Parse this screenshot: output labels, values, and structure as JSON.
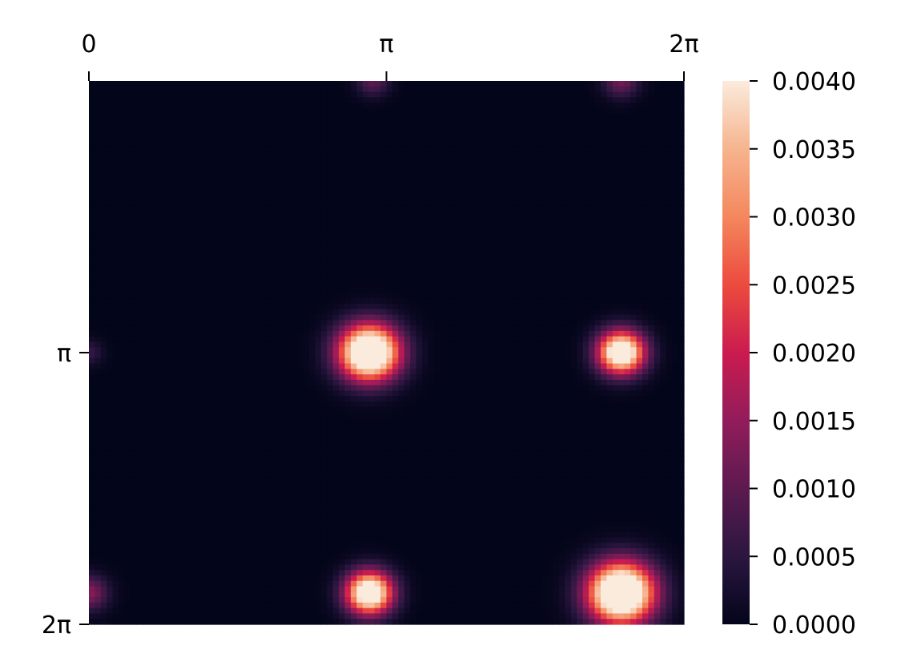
{
  "chart_data": {
    "type": "heatmap",
    "title": "",
    "xlabel": "",
    "ylabel": "",
    "x_ticks": [
      {
        "label": "0",
        "value": 0
      },
      {
        "label": "π",
        "value": 3.14159
      },
      {
        "label": "2π",
        "value": 6.28319
      }
    ],
    "y_ticks": [
      {
        "label": "π",
        "value": 3.14159
      },
      {
        "label": "2π",
        "value": 6.28319
      }
    ],
    "x_range": [
      0,
      6.28319
    ],
    "y_range": [
      0,
      6.28319
    ],
    "x_axis_position": "top",
    "y_axis_inverted": true,
    "background_value": 0.0,
    "colorbar": {
      "range": [
        0.0,
        0.004
      ],
      "tick_values": [
        0.0,
        0.0005,
        0.001,
        0.0015,
        0.002,
        0.0025,
        0.003,
        0.0035,
        0.004
      ],
      "tick_labels": [
        "0.0000",
        "0.0005",
        "0.0010",
        "0.0015",
        "0.0020",
        "0.0025",
        "0.0030",
        "0.0035",
        "0.0040"
      ],
      "colormap": "rocket",
      "stops": [
        "#03051a",
        "#2b1640",
        "#5c1a4f",
        "#921c5b",
        "#cb1b4f",
        "#ec4b3e",
        "#f4875e",
        "#f6b48e",
        "#faebdd"
      ]
    },
    "peaks": [
      {
        "x": 2.96,
        "y": 3.14,
        "value": 0.006,
        "width": 0.22
      },
      {
        "x": 5.62,
        "y": 3.14,
        "value": 0.0052,
        "width": 0.17
      },
      {
        "x": 2.96,
        "y": 5.92,
        "value": 0.0052,
        "width": 0.17
      },
      {
        "x": 5.62,
        "y": 5.92,
        "value": 0.0062,
        "width": 0.24
      },
      {
        "x": 3.0,
        "y": 0.0,
        "value": 0.001,
        "width": 0.12
      },
      {
        "x": 5.62,
        "y": 0.0,
        "value": 0.0012,
        "width": 0.13
      },
      {
        "x": 0.0,
        "y": 5.92,
        "value": 0.0014,
        "width": 0.14
      },
      {
        "x": 0.0,
        "y": 3.14,
        "value": 0.0006,
        "width": 0.1
      }
    ]
  }
}
